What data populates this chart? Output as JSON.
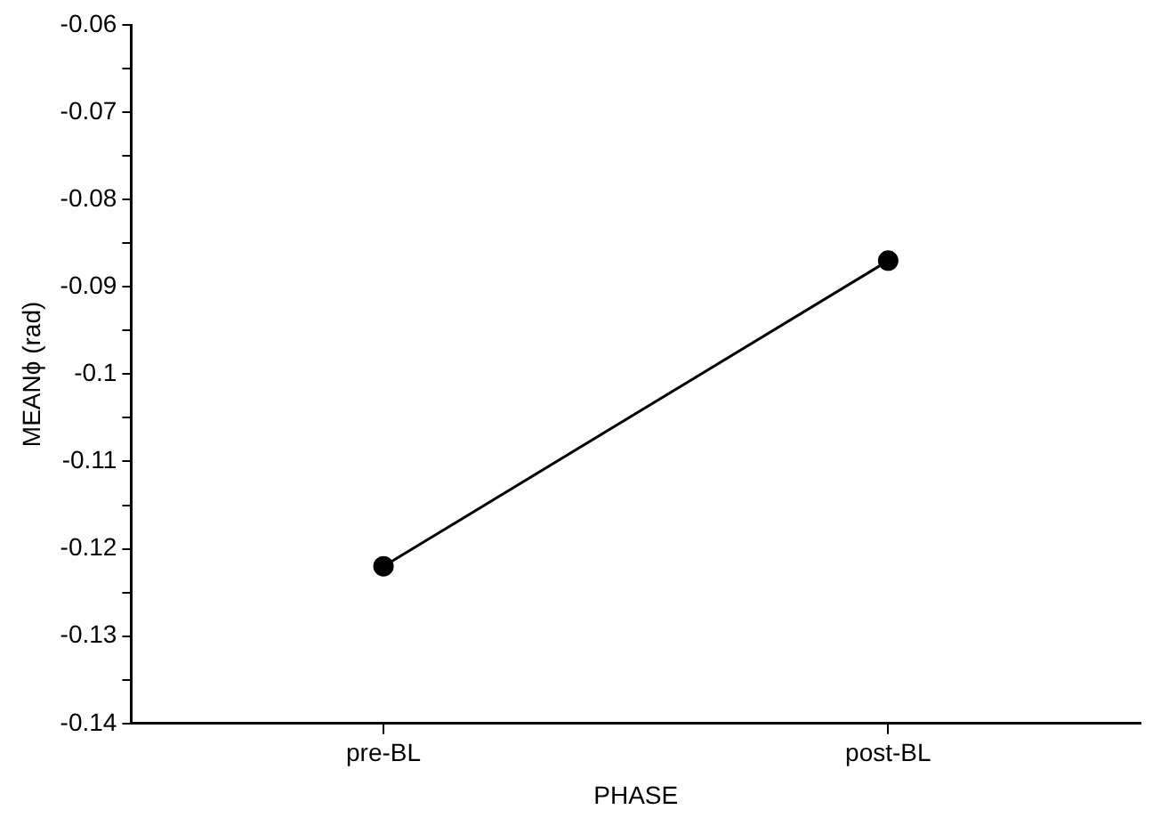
{
  "chart_data": {
    "type": "line",
    "xlabel": "PHASE",
    "ylabel": "MEANϕ (rad)",
    "categories": [
      "pre-BL",
      "post-BL"
    ],
    "series": [
      {
        "color": "#000000",
        "values": [
          -0.122,
          -0.087
        ]
      }
    ],
    "ylim": [
      -0.14,
      -0.06
    ],
    "yticks": [
      -0.14,
      {
        "value": -0.135,
        "label": null
      },
      -0.13,
      {
        "value": -0.125,
        "label": null
      },
      -0.12,
      {
        "value": -0.115,
        "label": null
      },
      -0.11,
      {
        "value": -0.105,
        "label": null
      },
      -0.1,
      {
        "value": -0.095,
        "label": null
      },
      -0.09,
      {
        "value": -0.085,
        "label": null
      },
      -0.08,
      {
        "value": -0.075,
        "label": null
      },
      -0.07,
      {
        "value": -0.065,
        "label": null
      },
      -0.06
    ],
    "grid": false,
    "legend": false,
    "marker": "circle",
    "line_style": "solid"
  }
}
